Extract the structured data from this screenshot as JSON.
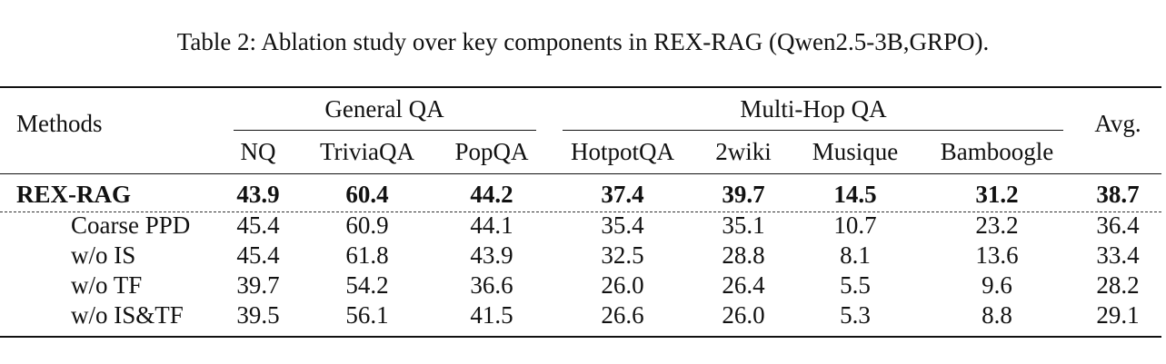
{
  "caption": "Table 2: Ablation study over key components in REX-RAG (Qwen2.5-3B,GRPO).",
  "header": {
    "methods": "Methods",
    "group_general": "General QA",
    "group_multihop": "Multi-Hop QA",
    "avg": "Avg.",
    "columns": [
      "NQ",
      "TriviaQA",
      "PopQA",
      "HotpotQA",
      "2wiki",
      "Musique",
      "Bamboogle"
    ]
  },
  "rows": [
    {
      "method": "REX-RAG",
      "bold": true,
      "values": [
        "43.9",
        "60.4",
        "44.2",
        "37.4",
        "39.7",
        "14.5",
        "31.2",
        "38.7"
      ]
    },
    {
      "method": "Coarse PPD",
      "bold": false,
      "values": [
        "45.4",
        "60.9",
        "44.1",
        "35.4",
        "35.1",
        "10.7",
        "23.2",
        "36.4"
      ]
    },
    {
      "method": "w/o IS",
      "bold": false,
      "values": [
        "45.4",
        "61.8",
        "43.9",
        "32.5",
        "28.8",
        "8.1",
        "13.6",
        "33.4"
      ]
    },
    {
      "method": "w/o TF",
      "bold": false,
      "values": [
        "39.7",
        "54.2",
        "36.6",
        "26.0",
        "26.4",
        "5.5",
        "9.6",
        "28.2"
      ]
    },
    {
      "method": "w/o IS&TF",
      "bold": false,
      "values": [
        "39.5",
        "56.1",
        "41.5",
        "26.6",
        "26.0",
        "5.3",
        "8.8",
        "29.1"
      ]
    }
  ]
}
